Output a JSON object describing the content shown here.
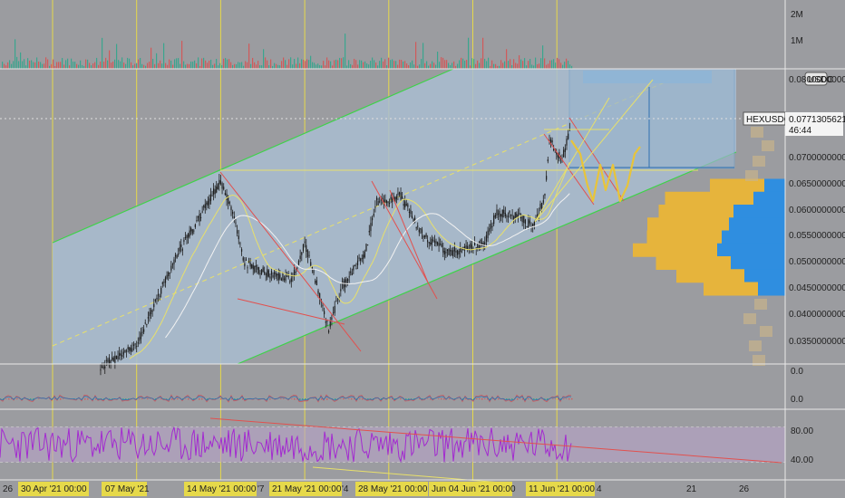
{
  "colors": {
    "background": "#9b9ca0",
    "channel_fill": "#a9bdd0",
    "channel_border": "#3fd24a",
    "vertical_lines": "#e6d94a",
    "candle": "#1d1d1d",
    "ma_white": "#f2f2f2",
    "ma_yellow": "#e8e06a",
    "red_lines": "#e2504e",
    "rsi_line": "#a32ad0",
    "rsi_band": "#b8a3c8",
    "vp_up": "#e6b43c",
    "vp_down": "#2f8ee0",
    "projection": "#e8c43a",
    "date_label_bg": "#e6d94a"
  },
  "price_axis": {
    "currency_badge": "USDC",
    "symbol_badge": "HEXUSDC",
    "last_price": "0.0771305621",
    "countdown": "46:44",
    "ticks": [
      "0.0800000000",
      "0.0700000000",
      "0.0650000000",
      "0.0600000000",
      "0.0550000000",
      "0.0500000000",
      "0.0450000000",
      "0.0400000000",
      "0.0350000000"
    ]
  },
  "volume_axis": {
    "ticks": [
      "2M",
      "1M"
    ]
  },
  "macd_axis": {
    "ticks": [
      "0.0",
      "0.0"
    ]
  },
  "rsi_axis": {
    "ticks": [
      "80.00",
      "40.00"
    ]
  },
  "time_axis": {
    "labels": [
      "26",
      "30 Apr '21  00:00",
      "07 May '21",
      "14 May '21  00:00",
      "21 May '21  00:00",
      "28 May '21  00:00",
      "Jun  04 Jun '21  00:00",
      "11 Jun '21  00:00",
      "4",
      "21",
      "26"
    ],
    "partial_labels": [
      "'7",
      "'4"
    ]
  },
  "chart_data": {
    "type": "candlestick",
    "symbol": "HEXUSDC",
    "ylim": [
      0.031,
      0.0855
    ],
    "x_range_days": [
      "2021-04-26",
      "2021-07-01"
    ],
    "highlighted_dates": [
      "2021-04-30",
      "2021-05-07",
      "2021-05-14",
      "2021-05-21",
      "2021-05-28",
      "2021-06-04",
      "2021-06-11"
    ],
    "price_path": [
      {
        "date": "2021-05-04",
        "price": 0.03
      },
      {
        "date": "2021-05-07",
        "price": 0.034
      },
      {
        "date": "2021-05-10",
        "price": 0.05
      },
      {
        "date": "2021-05-12",
        "price": 0.058
      },
      {
        "date": "2021-05-14",
        "price": 0.066
      },
      {
        "date": "2021-05-15",
        "price": 0.06
      },
      {
        "date": "2021-05-16",
        "price": 0.05
      },
      {
        "date": "2021-05-18",
        "price": 0.048
      },
      {
        "date": "2021-05-20",
        "price": 0.047
      },
      {
        "date": "2021-05-21",
        "price": 0.054
      },
      {
        "date": "2021-05-22",
        "price": 0.046
      },
      {
        "date": "2021-05-23",
        "price": 0.037
      },
      {
        "date": "2021-05-24",
        "price": 0.045
      },
      {
        "date": "2021-05-26",
        "price": 0.052
      },
      {
        "date": "2021-05-27",
        "price": 0.062
      },
      {
        "date": "2021-05-29",
        "price": 0.063
      },
      {
        "date": "2021-05-31",
        "price": 0.055
      },
      {
        "date": "2021-06-02",
        "price": 0.052
      },
      {
        "date": "2021-06-05",
        "price": 0.054
      },
      {
        "date": "2021-06-06",
        "price": 0.06
      },
      {
        "date": "2021-06-08",
        "price": 0.059
      },
      {
        "date": "2021-06-09",
        "price": 0.057
      },
      {
        "date": "2021-06-10",
        "price": 0.063
      },
      {
        "date": "2021-06-11",
        "price": 0.074
      },
      {
        "date": "2021-06-11",
        "price": 0.07
      },
      {
        "date": "2021-06-12",
        "price": 0.0771
      }
    ],
    "volume_profile": [
      {
        "price": 0.065,
        "up": 0.4,
        "down": 0.23
      },
      {
        "price": 0.0625,
        "up": 0.65,
        "down": 0.35
      },
      {
        "price": 0.06,
        "up": 0.55,
        "down": 0.57
      },
      {
        "price": 0.0575,
        "up": 0.6,
        "down": 0.62
      },
      {
        "price": 0.055,
        "up": 0.55,
        "down": 0.7
      },
      {
        "price": 0.0525,
        "up": 0.62,
        "down": 0.75
      },
      {
        "price": 0.05,
        "up": 0.55,
        "down": 0.6
      },
      {
        "price": 0.0475,
        "up": 0.5,
        "down": 0.45
      },
      {
        "price": 0.045,
        "up": 0.4,
        "down": 0.3
      }
    ],
    "rsi_range": [
      20,
      100
    ],
    "rsi_reference_levels": [
      80,
      40
    ]
  }
}
